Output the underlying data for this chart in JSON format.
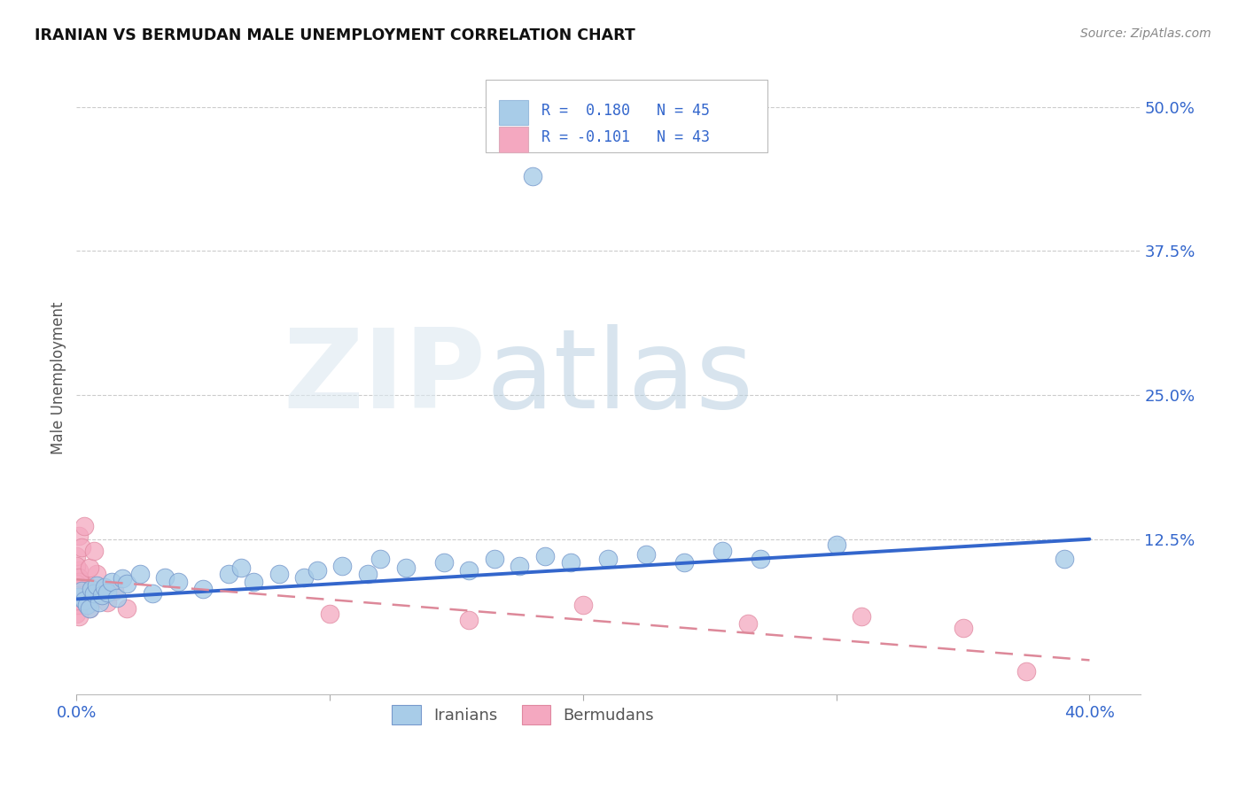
{
  "title": "IRANIAN VS BERMUDAN MALE UNEMPLOYMENT CORRELATION CHART",
  "source": "Source: ZipAtlas.com",
  "ylabel": "Male Unemployment",
  "xlim": [
    0.0,
    0.42
  ],
  "ylim": [
    -0.01,
    0.54
  ],
  "yticks": [
    0.125,
    0.25,
    0.375,
    0.5
  ],
  "ytick_labels": [
    "12.5%",
    "25.0%",
    "37.5%",
    "50.0%"
  ],
  "color_blue": "#a8cce8",
  "color_pink": "#f4a8c0",
  "color_blue_line": "#3366cc",
  "color_pink_line": "#dd8899",
  "color_axis_label": "#3366cc",
  "iranians_x": [
    0.001,
    0.002,
    0.003,
    0.004,
    0.005,
    0.006,
    0.007,
    0.008,
    0.009,
    0.01,
    0.011,
    0.012,
    0.014,
    0.016,
    0.018,
    0.02,
    0.025,
    0.03,
    0.035,
    0.04,
    0.05,
    0.06,
    0.065,
    0.07,
    0.08,
    0.09,
    0.095,
    0.105,
    0.115,
    0.12,
    0.13,
    0.145,
    0.155,
    0.165,
    0.175,
    0.185,
    0.195,
    0.21,
    0.225,
    0.24,
    0.255,
    0.27,
    0.3,
    0.39,
    0.18
  ],
  "iranians_y": [
    0.075,
    0.08,
    0.072,
    0.068,
    0.065,
    0.082,
    0.078,
    0.085,
    0.07,
    0.076,
    0.083,
    0.079,
    0.088,
    0.074,
    0.091,
    0.086,
    0.095,
    0.078,
    0.092,
    0.088,
    0.082,
    0.095,
    0.1,
    0.088,
    0.095,
    0.092,
    0.098,
    0.102,
    0.095,
    0.108,
    0.1,
    0.105,
    0.098,
    0.108,
    0.102,
    0.11,
    0.105,
    0.108,
    0.112,
    0.105,
    0.115,
    0.108,
    0.12,
    0.108,
    0.44
  ],
  "bermudans_x": [
    0.0,
    0.001,
    0.002,
    0.003,
    0.004,
    0.005,
    0.0,
    0.001,
    0.002,
    0.003,
    0.0,
    0.001,
    0.002,
    0.0,
    0.001,
    0.002,
    0.003,
    0.0,
    0.001,
    0.002,
    0.0,
    0.001,
    0.0,
    0.001,
    0.002,
    0.003,
    0.004,
    0.0,
    0.001,
    0.012,
    0.008,
    0.015,
    0.02,
    0.005,
    0.007,
    0.1,
    0.155,
    0.2,
    0.265,
    0.31,
    0.35,
    0.375,
    0.01
  ],
  "bermudans_y": [
    0.075,
    0.09,
    0.072,
    0.082,
    0.078,
    0.065,
    0.06,
    0.068,
    0.074,
    0.085,
    0.092,
    0.098,
    0.088,
    0.11,
    0.128,
    0.118,
    0.136,
    0.102,
    0.088,
    0.076,
    0.068,
    0.058,
    0.072,
    0.08,
    0.075,
    0.082,
    0.078,
    0.086,
    0.092,
    0.07,
    0.095,
    0.08,
    0.065,
    0.1,
    0.115,
    0.06,
    0.055,
    0.068,
    0.052,
    0.058,
    0.048,
    0.01,
    0.08
  ],
  "iran_line_x0": 0.0,
  "iran_line_x1": 0.4,
  "iran_line_y0": 0.073,
  "iran_line_y1": 0.125,
  "berm_line_x0": 0.0,
  "berm_line_x1": 0.4,
  "berm_line_y0": 0.09,
  "berm_line_y1": 0.02
}
